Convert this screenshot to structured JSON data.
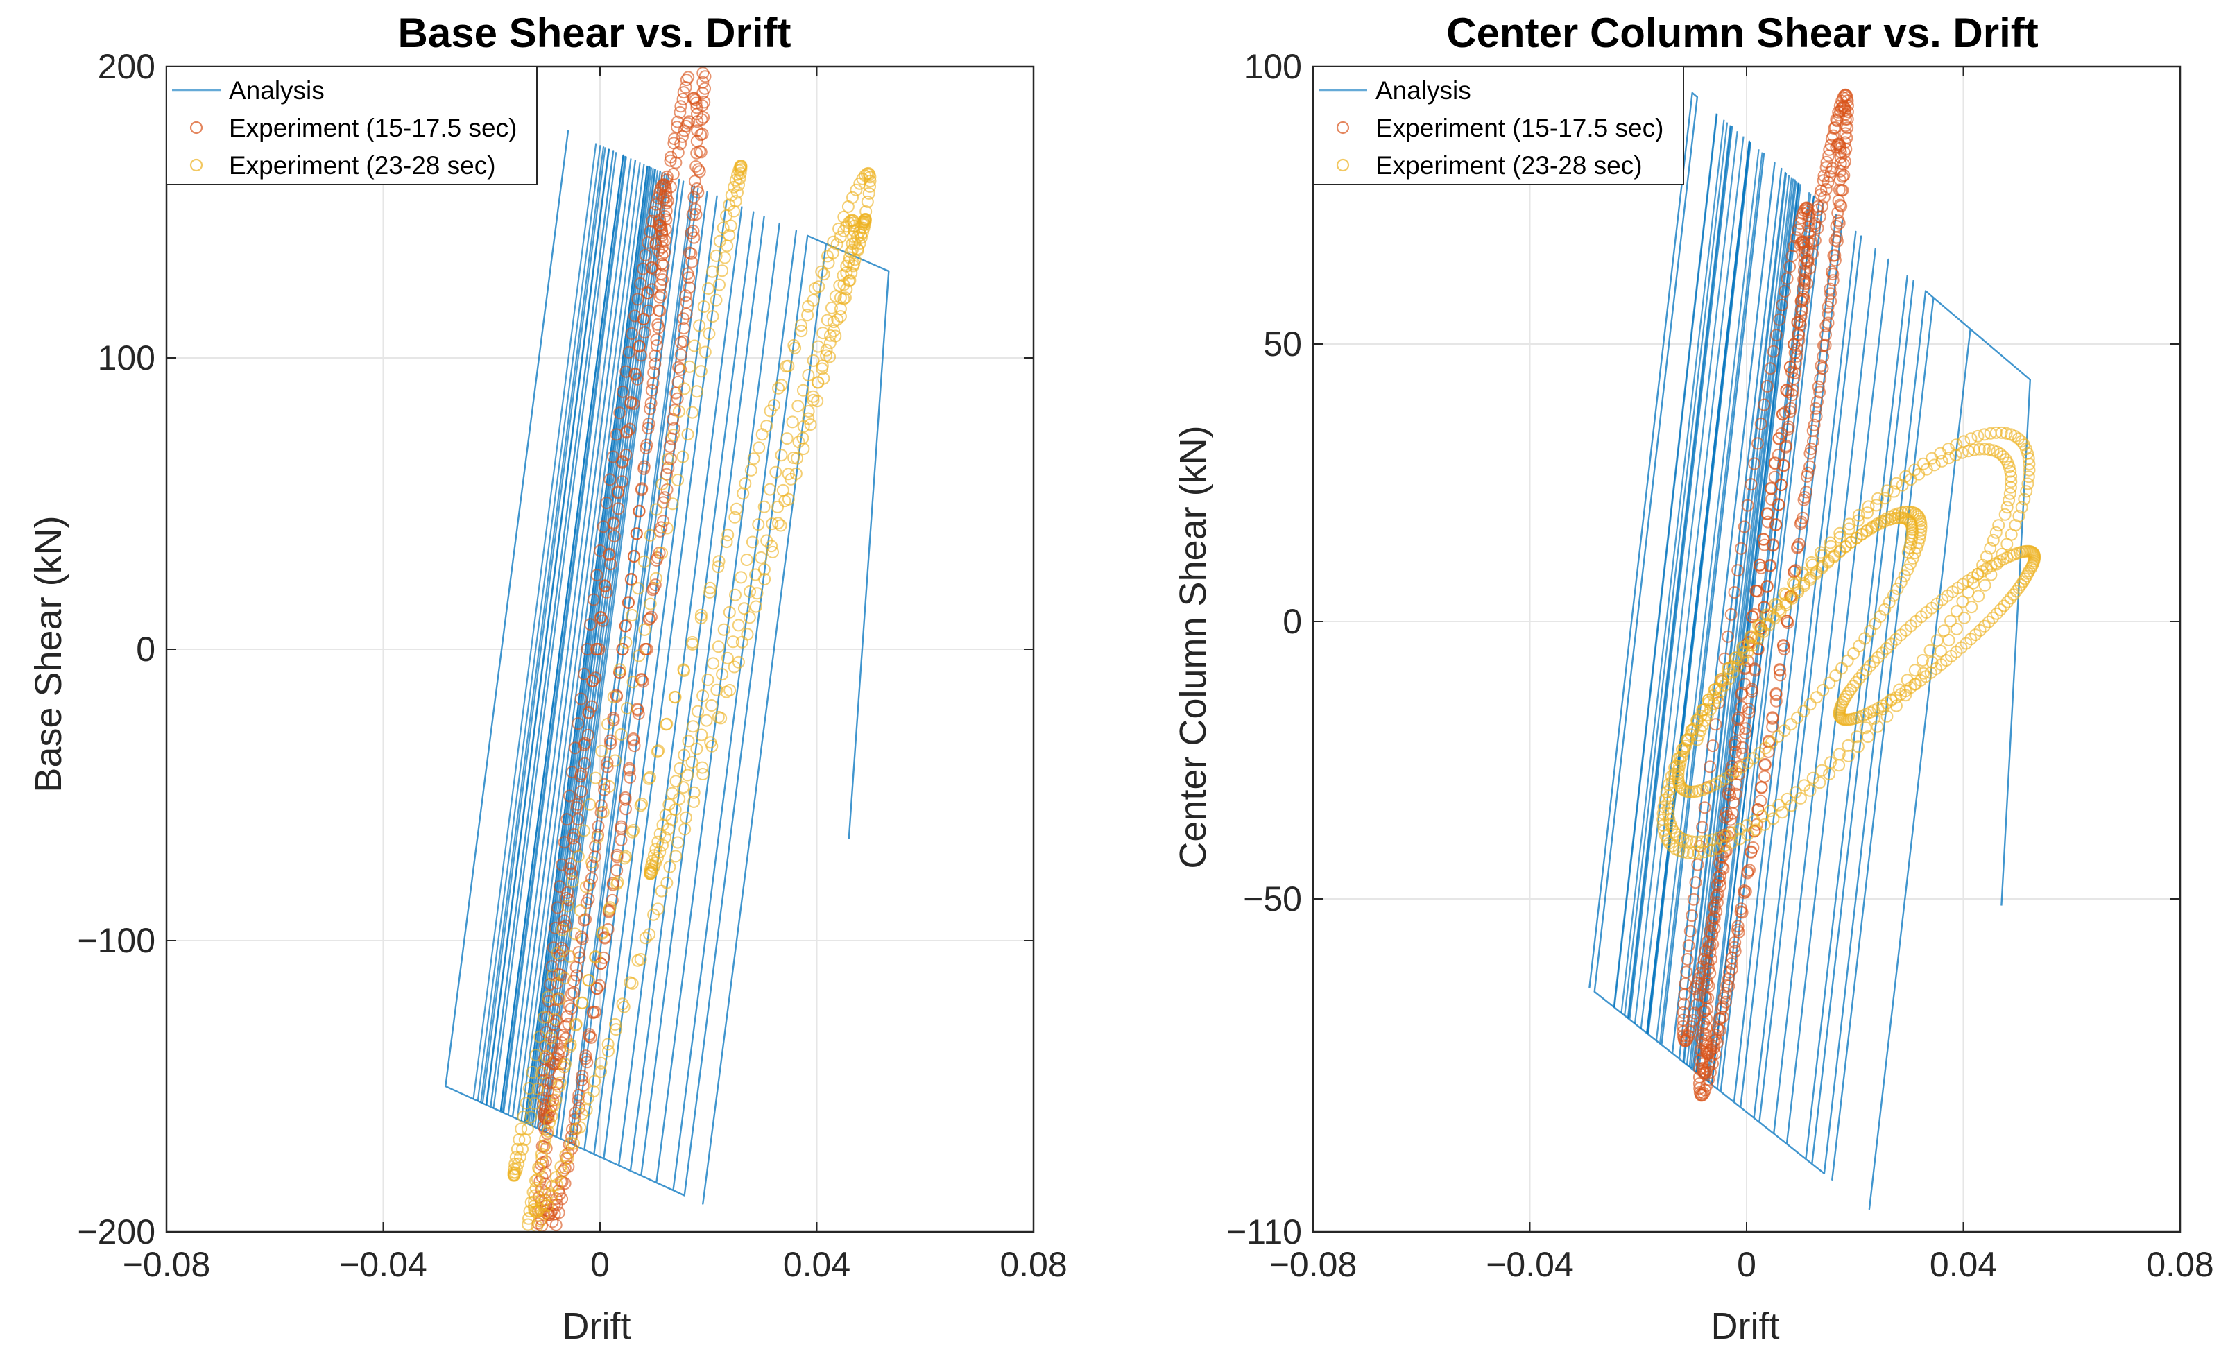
{
  "chart_data": [
    {
      "type": "line",
      "title": "Base Shear vs. Drift",
      "xlabel": "Drift",
      "ylabel": "Base Shear (kN)",
      "xlim": [
        -0.08,
        0.08
      ],
      "ylim": [
        -200,
        200
      ],
      "xticks": [
        -0.08,
        -0.04,
        0,
        0.04,
        0.08
      ],
      "xtick_labels": [
        "−0.08",
        "−0.04",
        "0",
        "0.04",
        "0.08"
      ],
      "yticks": [
        -200,
        -100,
        0,
        100,
        200
      ],
      "ytick_labels": [
        "−200",
        "−100",
        "0",
        "100",
        "200"
      ],
      "grid": true,
      "legend_position": "top-left",
      "series": [
        {
          "name": "Analysis",
          "style": "line",
          "color": "#0072BD",
          "envelope": {
            "yield_upper": [
              [
                -0.0085,
                180
              ],
              [
                0.053,
                130
              ]
            ],
            "yield_lower": [
              [
                -0.0285,
                -150
              ],
              [
                0.015,
                -187
              ]
            ],
            "branch_slope": 14500
          }
        },
        {
          "name": "Experiment (15-17.5 sec)",
          "style": "circle",
          "color": "#D95319",
          "loops": [
            {
              "cx": 0.004,
              "cy": 0,
              "ax": 0.024,
              "ay": 195,
              "bx": 0.007,
              "by": 0,
              "turns": 3
            },
            {
              "cx": 0.001,
              "cy": 0,
              "ax": 0.018,
              "ay": 150,
              "bx": 0.005,
              "by": 0,
              "turns": 1.5
            }
          ]
        },
        {
          "name": "Experiment (23-28 sec)",
          "style": "circle",
          "color": "#EDB120",
          "loops": [
            {
              "cx": 0.018,
              "cy": -20,
              "ax": 0.048,
              "ay": 145,
              "bx": 0.018,
              "by": 85,
              "turns": 2
            },
            {
              "cx": 0.006,
              "cy": 0,
              "ax": 0.034,
              "ay": 155,
              "bx": 0.01,
              "by": 60,
              "turns": 1
            },
            {
              "cx": 0.03,
              "cy": 40,
              "ax": 0.032,
              "ay": 100,
              "bx": 0.01,
              "by": 40,
              "turns": 1
            }
          ]
        }
      ]
    },
    {
      "type": "line",
      "title": "Center Column Shear vs. Drift",
      "xlabel": "Drift",
      "ylabel": "Center Column Shear (kN)",
      "xlim": [
        -0.08,
        0.08
      ],
      "ylim": [
        -110,
        100
      ],
      "xticks": [
        -0.08,
        -0.04,
        0,
        0.04,
        0.08
      ],
      "xtick_labels": [
        "−0.08",
        "−0.04",
        "0",
        "0.04",
        "0.08"
      ],
      "yticks": [
        -110,
        -50,
        0,
        50,
        100
      ],
      "ytick_labels": [
        "−110",
        "−50",
        "0",
        "50",
        "100"
      ],
      "grid": true,
      "legend_position": "top-left",
      "series": [
        {
          "name": "Analysis",
          "style": "line",
          "color": "#0072BD",
          "envelope": {
            "yield_upper": [
              [
                -0.0085,
                94
              ],
              [
                0.053,
                43
              ]
            ],
            "yield_lower": [
              [
                -0.029,
                -66
              ],
              [
                0.015,
                -100
              ]
            ],
            "branch_slope": 8500
          }
        },
        {
          "name": "Experiment (15-17.5 sec)",
          "style": "circle",
          "color": "#D95319",
          "loops": [
            {
              "cx": 0.005,
              "cy": 5,
              "ax": 0.021,
              "ay": 83,
              "bx": 0.007,
              "by": 8,
              "turns": 3
            },
            {
              "cx": 0.0,
              "cy": 0,
              "ax": 0.018,
              "ay": 70,
              "bx": 0.006,
              "by": 6,
              "turns": 1.5
            }
          ]
        },
        {
          "name": "Experiment (23-28 sec)",
          "style": "circle",
          "color": "#EDB120",
          "loops": [
            {
              "cx": 0.018,
              "cy": -4,
              "ax": 0.054,
              "ay": 24,
              "bx": 0.012,
              "by": 25,
              "turns": 2
            },
            {
              "cx": 0.01,
              "cy": -5,
              "ax": 0.036,
              "ay": 18,
              "bx": 0.008,
              "by": 15,
              "turns": 1.5
            },
            {
              "cx": 0.036,
              "cy": -2,
              "ax": 0.03,
              "ay": 12,
              "bx": 0.006,
              "by": 8,
              "turns": 1
            }
          ]
        }
      ]
    }
  ]
}
